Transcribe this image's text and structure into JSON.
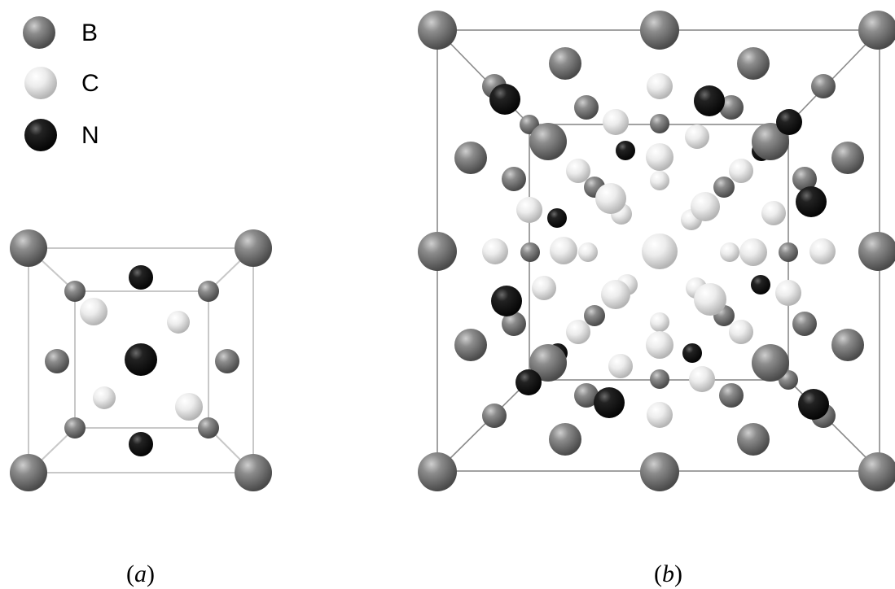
{
  "legend": [
    {
      "label": "B",
      "element": "B",
      "color": "#7a7a7a"
    },
    {
      "label": "C",
      "element": "C",
      "color": "#e6e6e6"
    },
    {
      "label": "N",
      "element": "N",
      "color": "#141414"
    }
  ],
  "captions": {
    "a_open": "(",
    "a_letter": "a",
    "a_close": ")",
    "b_open": "(",
    "b_letter": "b",
    "b_close": ")"
  },
  "colors": {
    "B": "#7a7a7a",
    "C": "#e6e6e6",
    "N": "#141414",
    "edge_a": "#c8c8c8",
    "edge_b": "#8a8a8a"
  }
}
